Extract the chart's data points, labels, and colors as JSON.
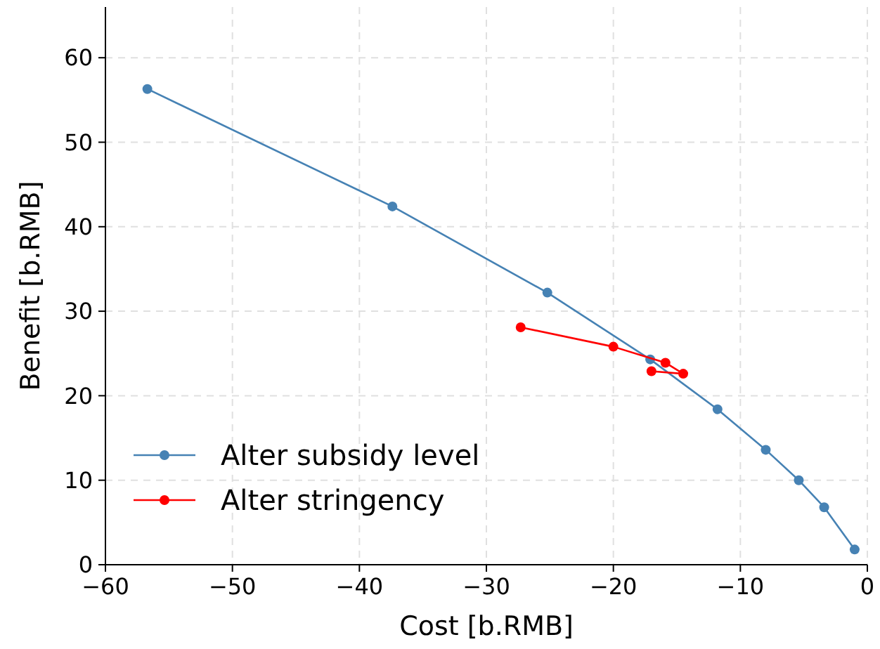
{
  "chart_data": {
    "type": "line",
    "xlabel": "Cost [b.RMB]",
    "ylabel": "Benefit [b.RMB]",
    "xlim": [
      -60,
      0
    ],
    "ylim": [
      0,
      66
    ],
    "xticks": [
      -60,
      -50,
      -40,
      -30,
      -20,
      -10,
      0
    ],
    "yticks": [
      0,
      10,
      20,
      30,
      40,
      50,
      60
    ],
    "grid": true,
    "legend": "bottom left",
    "marker": "circle",
    "series": [
      {
        "name": "Alter subsidy level",
        "color": "#4682b4",
        "x": [
          -56.7,
          -37.4,
          -25.2,
          -17.1,
          -11.8,
          -8.0,
          -5.4,
          -3.4,
          -1.0
        ],
        "values": [
          56.3,
          42.4,
          32.2,
          24.3,
          18.4,
          13.6,
          10.0,
          6.8,
          1.8
        ]
      },
      {
        "name": "Alter stringency",
        "color": "#ff0000",
        "x": [
          -27.3,
          -20.0,
          -15.9,
          -14.5,
          -17.0
        ],
        "values": [
          28.1,
          25.8,
          23.9,
          22.6,
          22.9
        ]
      }
    ]
  }
}
